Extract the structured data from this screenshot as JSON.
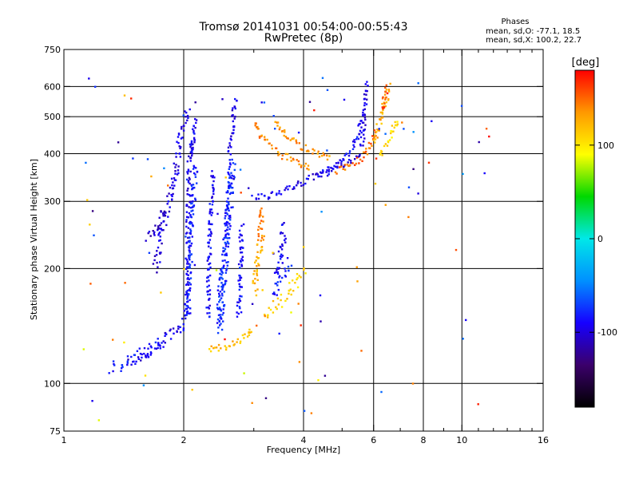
{
  "header": {
    "title_line1": "Tromsø 20141031 00:54:00-00:55:43",
    "title_line2": "RwPretec (8p)",
    "stats_title": "Phases",
    "stats_o": "mean, sd,O: -77.1, 18.5",
    "stats_x": "mean, sd,X: 100.2, 22.7"
  },
  "chart_data": {
    "type": "scatter",
    "xlabel": "Frequency [MHz]",
    "ylabel": "Stationary phase Virtual Height [km]",
    "x_scale": "log2",
    "y_scale": "log",
    "xlim": [
      1,
      16
    ],
    "ylim": [
      75,
      750
    ],
    "x_ticks": [
      1,
      2,
      4,
      6,
      8,
      10,
      16
    ],
    "x_tick_labels": [
      "1",
      "2",
      "4",
      "6",
      "8",
      "10",
      "16"
    ],
    "x_minor_ticks": [
      3,
      5,
      7,
      9,
      11,
      12,
      13,
      14,
      15
    ],
    "y_ticks": [
      75,
      100,
      200,
      300,
      400,
      500,
      600,
      750
    ],
    "y_tick_labels": [
      "75",
      "100",
      "200",
      "300",
      "400",
      "500",
      "600",
      "750"
    ],
    "grid": true,
    "colorbar": {
      "label": "[deg]",
      "range": [
        -180,
        180
      ],
      "ticks": [
        100,
        0,
        -100
      ],
      "tick_labels": [
        "100",
        "0",
        "-100"
      ],
      "colors": [
        "#000000",
        "#3b006b",
        "#1600ff",
        "#0090ff",
        "#00e8e8",
        "#00d800",
        "#ffff00",
        "#ff9900",
        "#ff0000"
      ]
    },
    "traces": [
      {
        "name": "",
        "phase": -95,
        "jitter": 0.04,
        "dens": 1,
        "points": [
          [
            1.45,
            112
          ],
          [
            1.55,
            115
          ],
          [
            1.65,
            122
          ],
          [
            1.75,
            130
          ],
          [
            1.85,
            135
          ],
          [
            1.95,
            138
          ],
          [
            2.0,
            142
          ],
          [
            2.03,
            160
          ],
          [
            2.05,
            220
          ],
          [
            2.06,
            300
          ],
          [
            2.07,
            380
          ],
          [
            2.08,
            440
          ]
        ]
      },
      {
        "name": "",
        "phase": -100,
        "jitter": 0.05,
        "dens": 1,
        "points": [
          [
            1.7,
            200
          ],
          [
            1.75,
            240
          ],
          [
            1.8,
            270
          ],
          [
            1.85,
            300
          ],
          [
            1.9,
            350
          ],
          [
            1.95,
            420
          ],
          [
            2.0,
            480
          ],
          [
            2.05,
            520
          ]
        ]
      },
      {
        "name": "",
        "phase": -105,
        "jitter": 0.05,
        "dens": 1,
        "points": [
          [
            1.6,
            240
          ],
          [
            1.7,
            250
          ],
          [
            1.75,
            265
          ],
          [
            1.8,
            290
          ]
        ]
      },
      {
        "name": "",
        "phase": -85,
        "jitter": 0.05,
        "dens": 1,
        "points": [
          [
            1.3,
            110
          ],
          [
            1.4,
            112
          ],
          [
            1.5,
            118
          ],
          [
            1.6,
            122
          ],
          [
            1.7,
            125
          ],
          [
            1.85,
            130
          ]
        ]
      },
      {
        "name": "",
        "phase": -80,
        "jitter": 0.04,
        "dens": 1,
        "points": [
          [
            2.05,
            150
          ],
          [
            2.07,
            200
          ],
          [
            2.1,
            260
          ],
          [
            2.12,
            320
          ],
          [
            2.15,
            380
          ]
        ]
      },
      {
        "name": "",
        "phase": -80,
        "jitter": 0.06,
        "dens": 2,
        "points": [
          [
            2.45,
            140
          ],
          [
            2.5,
            180
          ],
          [
            2.55,
            230
          ],
          [
            2.6,
            280
          ],
          [
            2.62,
            330
          ],
          [
            2.65,
            380
          ]
        ]
      },
      {
        "name": "",
        "phase": -90,
        "jitter": 0.03,
        "dens": 1,
        "points": [
          [
            2.3,
            150
          ],
          [
            2.32,
            220
          ],
          [
            2.35,
            300
          ],
          [
            2.37,
            360
          ]
        ]
      },
      {
        "name": "",
        "phase": -85,
        "jitter": 0.04,
        "dens": 1,
        "points": [
          [
            2.75,
            150
          ],
          [
            2.78,
            200
          ],
          [
            2.8,
            260
          ]
        ]
      },
      {
        "name": "",
        "phase": -95,
        "jitter": 0.03,
        "dens": 1,
        "points": [
          [
            2.6,
            400
          ],
          [
            2.65,
            460
          ],
          [
            2.68,
            520
          ],
          [
            2.7,
            560
          ]
        ]
      },
      {
        "name": "",
        "phase": -90,
        "jitter": 0.03,
        "dens": 1,
        "points": [
          [
            2.1,
            400
          ],
          [
            2.12,
            460
          ],
          [
            2.15,
            500
          ]
        ]
      },
      {
        "name": "",
        "phase": -95,
        "jitter": 0.03,
        "dens": 1,
        "points": [
          [
            3.0,
            305
          ],
          [
            3.3,
            312
          ],
          [
            3.7,
            325
          ],
          [
            4.0,
            338
          ],
          [
            4.3,
            352
          ],
          [
            4.8,
            370
          ],
          [
            5.2,
            380
          ],
          [
            5.6,
            395
          ]
        ]
      },
      {
        "name": "",
        "phase": -98,
        "jitter": 0.03,
        "dens": 1,
        "points": [
          [
            5.6,
            420
          ],
          [
            5.65,
            460
          ],
          [
            5.7,
            520
          ],
          [
            5.75,
            580
          ],
          [
            5.8,
            620
          ]
        ]
      },
      {
        "name": "",
        "phase": -90,
        "jitter": 0.03,
        "dens": 1,
        "points": [
          [
            4.4,
            350
          ],
          [
            4.8,
            368
          ],
          [
            5.2,
            400
          ],
          [
            5.5,
            450
          ],
          [
            5.6,
            500
          ]
        ]
      },
      {
        "name": "",
        "phase": -90,
        "jitter": 0.05,
        "dens": 1,
        "points": [
          [
            3.4,
            190
          ],
          [
            3.5,
            210
          ],
          [
            3.55,
            240
          ],
          [
            3.6,
            260
          ]
        ]
      },
      {
        "name": "",
        "phase": -80,
        "jitter": 0.05,
        "dens": 1,
        "points": [
          [
            3.35,
            170
          ],
          [
            3.5,
            190
          ],
          [
            3.65,
            200
          ],
          [
            3.75,
            210
          ]
        ]
      },
      {
        "name": "",
        "phase": 145,
        "jitter": 0.05,
        "dens": 1,
        "points": [
          [
            3.1,
            230
          ],
          [
            3.12,
            260
          ],
          [
            3.13,
            290
          ]
        ]
      },
      {
        "name": "",
        "phase": 125,
        "jitter": 0.05,
        "dens": 1,
        "points": [
          [
            3.0,
            175
          ],
          [
            3.05,
            200
          ],
          [
            3.1,
            220
          ],
          [
            3.15,
            240
          ]
        ]
      },
      {
        "name": "",
        "phase": 110,
        "jitter": 0.05,
        "dens": 1,
        "points": [
          [
            3.2,
            150
          ],
          [
            3.4,
            160
          ],
          [
            3.6,
            170
          ],
          [
            3.8,
            180
          ],
          [
            4.0,
            200
          ]
        ]
      },
      {
        "name": "",
        "phase": 120,
        "jitter": 0.03,
        "dens": 1,
        "points": [
          [
            2.3,
            123
          ],
          [
            2.5,
            124
          ],
          [
            2.7,
            127
          ],
          [
            2.85,
            132
          ],
          [
            3.0,
            140
          ]
        ]
      },
      {
        "name": "",
        "phase": 140,
        "jitter": 0.03,
        "dens": 1,
        "points": [
          [
            3.0,
            480
          ],
          [
            3.15,
            440
          ],
          [
            3.3,
            420
          ],
          [
            3.5,
            400
          ],
          [
            3.8,
            380
          ],
          [
            4.2,
            365
          ]
        ]
      },
      {
        "name": "",
        "phase": 135,
        "jitter": 0.03,
        "dens": 1,
        "points": [
          [
            3.4,
            490
          ],
          [
            3.6,
            450
          ],
          [
            3.9,
            420
          ],
          [
            4.3,
            400
          ],
          [
            4.7,
            390
          ]
        ]
      },
      {
        "name": "",
        "phase": 150,
        "jitter": 0.03,
        "dens": 1,
        "points": [
          [
            4.8,
            360
          ],
          [
            5.2,
            370
          ],
          [
            5.6,
            390
          ],
          [
            5.9,
            420
          ],
          [
            6.1,
            460
          ]
        ]
      },
      {
        "name": "",
        "phase": 125,
        "jitter": 0.04,
        "dens": 1,
        "points": [
          [
            6.0,
            430
          ],
          [
            6.2,
            480
          ],
          [
            6.4,
            540
          ],
          [
            6.6,
            600
          ]
        ]
      },
      {
        "name": "",
        "phase": 105,
        "jitter": 0.04,
        "dens": 1,
        "points": [
          [
            6.2,
            400
          ],
          [
            6.5,
            430
          ],
          [
            6.8,
            470
          ],
          [
            7.0,
            500
          ]
        ]
      },
      {
        "name": "",
        "phase": 160,
        "jitter": 0.03,
        "dens": 1,
        "points": [
          [
            6.3,
            520
          ],
          [
            6.4,
            560
          ],
          [
            6.5,
            600
          ]
        ]
      }
    ],
    "scatter": {
      "phase_mix": [
        -110,
        -80,
        -60,
        100,
        130,
        160
      ],
      "count": 110,
      "xlim": [
        1.1,
        12
      ],
      "ylim": [
        80,
        640
      ]
    }
  }
}
